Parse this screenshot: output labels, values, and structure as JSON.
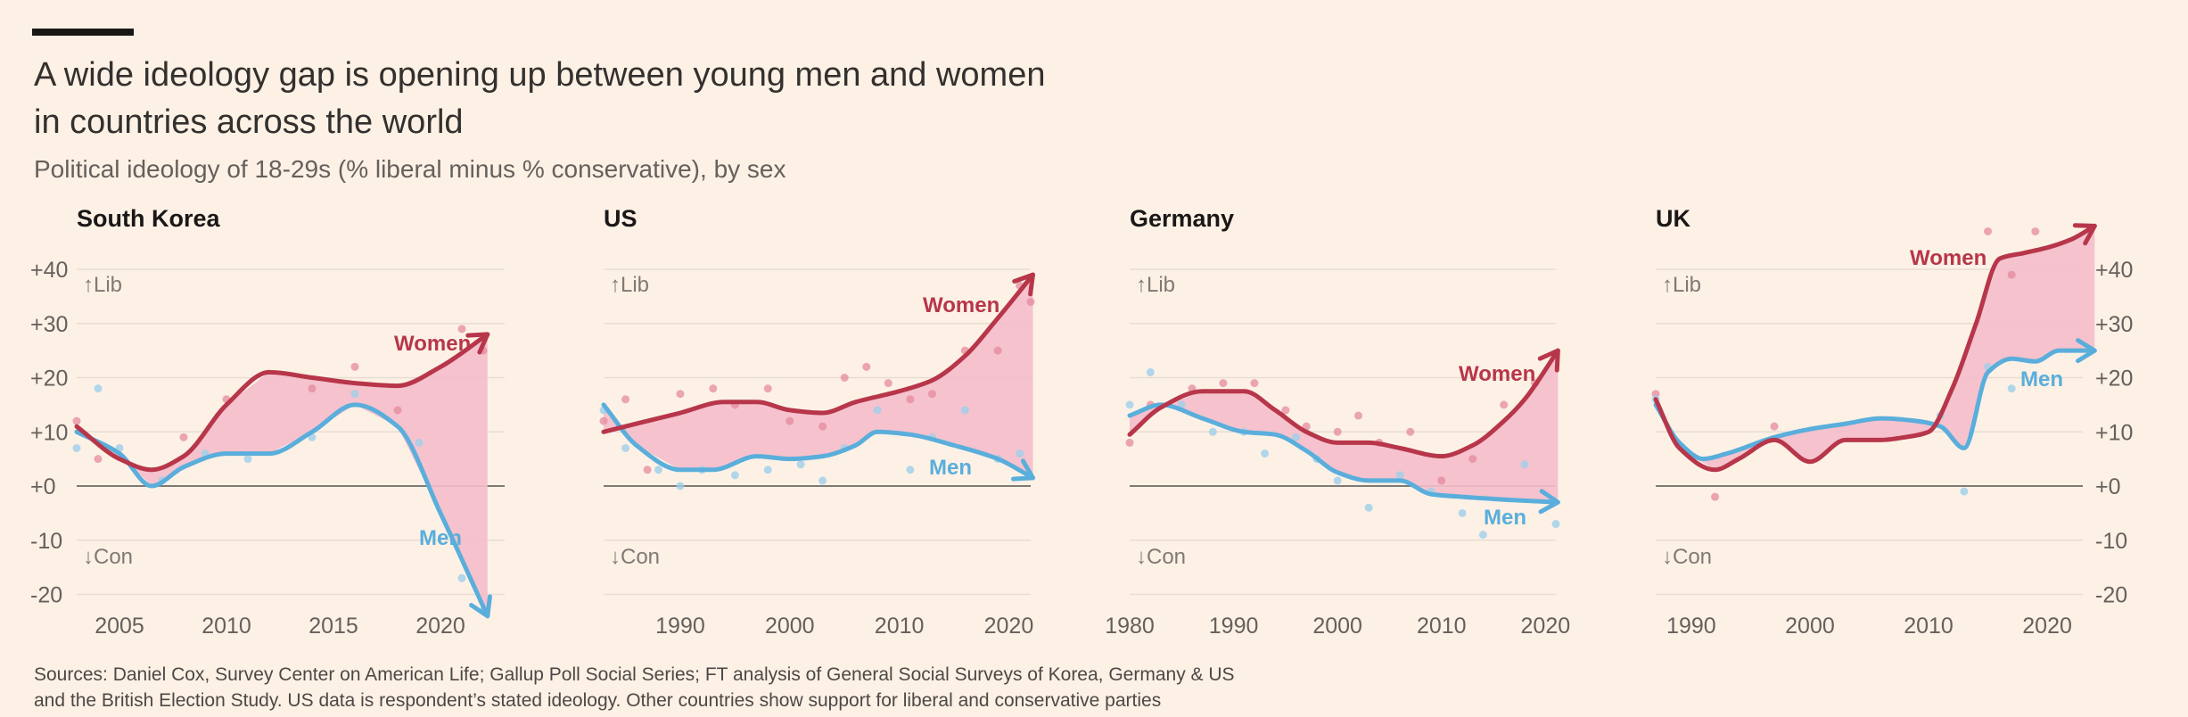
{
  "header": {
    "title_line1": "A wide ideology gap is opening up between young men and women",
    "title_line2": "in countries across the world",
    "subtitle": "Political ideology of 18-29s (% liberal minus % conservative), by sex"
  },
  "source": {
    "line1": "Sources: Daniel Cox, Survey Center on American Life; Gallup Poll Social Series; FT analysis of General Social Surveys of Korea, Germany & US",
    "line2": "and the British Election Study. US data is respondent’s stated ideology. Other countries show support for liberal and conservative parties"
  },
  "colors": {
    "women": "#b7364a",
    "men": "#5aaedb",
    "gap_fill": "#f4bccb",
    "zero_line": "#807973",
    "grid": "#e8ddd3"
  },
  "y_axis": {
    "ticks": [
      40,
      30,
      20,
      10,
      0,
      -10,
      -20
    ],
    "tick_labels": [
      "+40",
      "+30",
      "+20",
      "+10",
      "+0",
      "-10",
      "-20"
    ],
    "ylim": [
      -24,
      42
    ],
    "lib_label": "↑Lib",
    "con_label": "↓Con"
  },
  "chart_data": [
    {
      "type": "line",
      "title": "South Korea",
      "xlim": [
        2003,
        2023
      ],
      "xticks": [
        2005,
        2010,
        2015,
        2020
      ],
      "series": [
        {
          "name": "Women",
          "x": [
            2003,
            2005,
            2006.5,
            2008,
            2010,
            2012,
            2014,
            2016,
            2018,
            2020,
            2022.2
          ],
          "values": [
            11,
            5,
            3,
            5.5,
            15,
            21,
            20,
            19,
            18.5,
            22,
            28
          ]
        },
        {
          "name": "Men",
          "x": [
            2003,
            2005,
            2006.5,
            2008,
            2010,
            2012,
            2014,
            2016,
            2018,
            2020,
            2022.2
          ],
          "values": [
            10,
            6,
            0,
            3.5,
            6,
            6,
            10,
            15,
            11,
            -5,
            -24
          ]
        }
      ],
      "dots": {
        "women": [
          [
            2003,
            12
          ],
          [
            2004,
            5
          ],
          [
            2008,
            9
          ],
          [
            2010,
            16
          ],
          [
            2014,
            18
          ],
          [
            2016,
            22
          ],
          [
            2018,
            14
          ],
          [
            2021,
            29
          ],
          [
            2022,
            25
          ]
        ],
        "men": [
          [
            2003,
            7
          ],
          [
            2004,
            18
          ],
          [
            2005,
            7
          ],
          [
            2007,
            1
          ],
          [
            2009,
            6
          ],
          [
            2011,
            5
          ],
          [
            2014,
            9
          ],
          [
            2016,
            17
          ],
          [
            2019,
            8
          ],
          [
            2021,
            -17
          ],
          [
            2022,
            -23
          ]
        ]
      },
      "labels": {
        "women": "Women",
        "men": "Men"
      }
    },
    {
      "type": "line",
      "title": "US",
      "xlim": [
        1983,
        2022
      ],
      "xticks": [
        1990,
        2000,
        2010,
        2020
      ],
      "series": [
        {
          "name": "Women",
          "x": [
            1983,
            1986,
            1990,
            1994,
            1997,
            2000,
            2003,
            2006,
            2010,
            2013,
            2016,
            2019,
            2022.2
          ],
          "values": [
            10,
            11.5,
            13.5,
            15.5,
            15.5,
            14,
            13.5,
            15.5,
            17.5,
            19.5,
            24,
            31,
            39
          ]
        },
        {
          "name": "Men",
          "x": [
            1983,
            1986,
            1990,
            1993,
            1997,
            2000,
            2003,
            2006,
            2008,
            2011,
            2015,
            2019,
            2022.2
          ],
          "values": [
            15,
            7.5,
            3,
            3,
            5.5,
            5,
            5.5,
            7.5,
            10,
            9.5,
            7.5,
            5,
            1.5
          ]
        }
      ],
      "dots": {
        "women": [
          [
            1983,
            12
          ],
          [
            1985,
            16
          ],
          [
            1987,
            3
          ],
          [
            1990,
            17
          ],
          [
            1993,
            18
          ],
          [
            1995,
            15
          ],
          [
            1998,
            18
          ],
          [
            2000,
            12
          ],
          [
            2003,
            11
          ],
          [
            2005,
            20
          ],
          [
            2007,
            22
          ],
          [
            2009,
            19
          ],
          [
            2011,
            16
          ],
          [
            2013,
            17
          ],
          [
            2016,
            25
          ],
          [
            2019,
            25
          ],
          [
            2021,
            37
          ],
          [
            2022,
            34
          ]
        ],
        "men": [
          [
            1983,
            14
          ],
          [
            1985,
            7
          ],
          [
            1988,
            3
          ],
          [
            1990,
            0
          ],
          [
            1992,
            3
          ],
          [
            1995,
            2
          ],
          [
            1998,
            3
          ],
          [
            2001,
            4
          ],
          [
            2003,
            1
          ],
          [
            2005,
            7
          ],
          [
            2008,
            14
          ],
          [
            2011,
            3
          ],
          [
            2013,
            9
          ],
          [
            2016,
            14
          ],
          [
            2019,
            5
          ],
          [
            2021,
            6
          ]
        ]
      },
      "labels": {
        "women": "Women",
        "men": "Men"
      }
    },
    {
      "type": "line",
      "title": "Germany",
      "xlim": [
        1980,
        2021
      ],
      "xticks": [
        1980,
        1990,
        2000,
        2010,
        2020
      ],
      "series": [
        {
          "name": "Women",
          "x": [
            1980,
            1983,
            1987,
            1991,
            1994,
            1997,
            2000,
            2003,
            2006,
            2010,
            2013,
            2016,
            2018,
            2021.2
          ],
          "values": [
            9.5,
            14.5,
            17.5,
            17.5,
            14,
            10,
            8,
            8,
            7,
            5.5,
            7.5,
            12,
            16,
            25
          ]
        },
        {
          "name": "Men",
          "x": [
            1980,
            1983,
            1987,
            1991,
            1994,
            1997,
            2000,
            2003,
            2006,
            2009,
            2012,
            2016,
            2021.2
          ],
          "values": [
            13,
            15,
            12.5,
            10,
            9.5,
            6.5,
            2.5,
            1,
            1,
            -1.5,
            -2,
            -2.5,
            -3
          ]
        }
      ],
      "dots": {
        "women": [
          [
            1980,
            8
          ],
          [
            1982,
            15
          ],
          [
            1986,
            18
          ],
          [
            1989,
            19
          ],
          [
            1992,
            19
          ],
          [
            1995,
            14
          ],
          [
            1997,
            11
          ],
          [
            2000,
            10
          ],
          [
            2002,
            13
          ],
          [
            2004,
            8
          ],
          [
            2007,
            10
          ],
          [
            2010,
            1
          ],
          [
            2013,
            5
          ],
          [
            2016,
            15
          ],
          [
            2019,
            19
          ]
        ],
        "men": [
          [
            1980,
            15
          ],
          [
            1982,
            21
          ],
          [
            1985,
            15
          ],
          [
            1988,
            10
          ],
          [
            1991,
            10
          ],
          [
            1993,
            6
          ],
          [
            1996,
            9
          ],
          [
            1998,
            5
          ],
          [
            2000,
            1
          ],
          [
            2003,
            -4
          ],
          [
            2006,
            2
          ],
          [
            2009,
            -1
          ],
          [
            2012,
            -5
          ],
          [
            2014,
            -9
          ],
          [
            2018,
            4
          ],
          [
            2021,
            -7
          ]
        ]
      },
      "labels": {
        "women": "Women",
        "men": "Men"
      }
    },
    {
      "type": "line",
      "title": "UK",
      "xlim": [
        1987,
        2023
      ],
      "xticks": [
        1990,
        2000,
        2010,
        2020
      ],
      "series": [
        {
          "name": "Women",
          "x": [
            1987,
            1989,
            1992,
            1994,
            1997,
            2000,
            2003,
            2006,
            2008,
            2010,
            2012,
            2014,
            2016,
            2018,
            2020,
            2022,
            2024
          ],
          "values": [
            16,
            7,
            3,
            5,
            8.5,
            4.5,
            8.5,
            8.5,
            9,
            10,
            18,
            30,
            42,
            43,
            44,
            45.5,
            48
          ]
        },
        {
          "name": "Men",
          "x": [
            1987,
            1989,
            1991,
            1993,
            1997,
            2000,
            2003,
            2006,
            2009,
            2011,
            2013,
            2015,
            2017,
            2019,
            2021,
            2024
          ],
          "values": [
            15,
            8,
            5,
            6,
            9,
            10.5,
            11.5,
            12.5,
            12,
            11,
            7,
            21,
            23.5,
            23,
            25,
            25
          ]
        }
      ],
      "dots": {
        "women": [
          [
            1987,
            17
          ],
          [
            1992,
            -2
          ],
          [
            1997,
            11
          ],
          [
            2015,
            47
          ],
          [
            2017,
            39
          ],
          [
            2019,
            47
          ]
        ],
        "men": [
          [
            1987,
            16
          ],
          [
            2011,
            13
          ],
          [
            2013,
            -1
          ],
          [
            2015,
            22
          ],
          [
            2017,
            18
          ]
        ]
      },
      "labels": {
        "women": "Women",
        "men": "Men"
      }
    }
  ]
}
